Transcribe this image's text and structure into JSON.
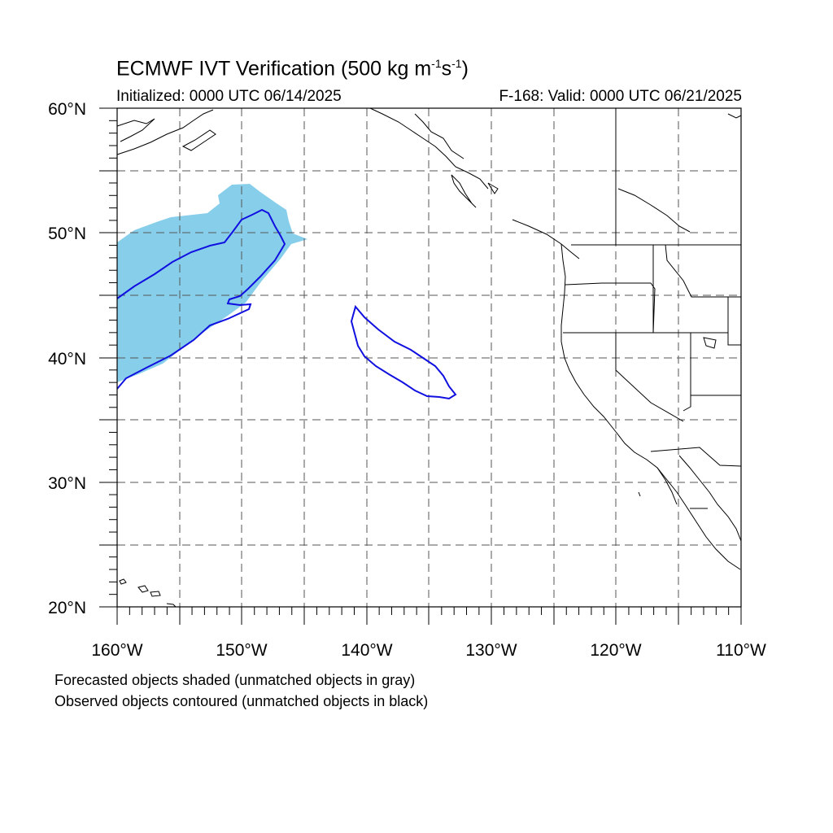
{
  "header": {
    "title_main": "ECMWF IVT Verification (500 kg m",
    "title_exp1": "-1",
    "title_mid": "s",
    "title_exp2": "-1",
    "title_end": ")",
    "initialized": "Initialized: 0000 UTC 06/14/2025",
    "valid": "F-168: Valid: 0000 UTC 06/21/2025"
  },
  "axes": {
    "lon_labels": [
      "160°W",
      "150°W",
      "140°W",
      "130°W",
      "120°W",
      "110°W"
    ],
    "lat_labels": [
      "60°N",
      "50°N",
      "40°N",
      "30°N",
      "20°N"
    ],
    "lon_range": [
      -160,
      -110
    ],
    "lat_range": [
      20,
      60
    ],
    "grid": "dashed, 5 degree spacing"
  },
  "layers": {
    "forecast_fill_color": "#87ceeb",
    "observed_contour_color": "#1010e0",
    "coast_color": "#000000"
  },
  "captions": {
    "line1": "Forecasted objects shaded (unmatched objects in gray)",
    "line2": "Observed objects contoured (unmatched objects in black)"
  }
}
